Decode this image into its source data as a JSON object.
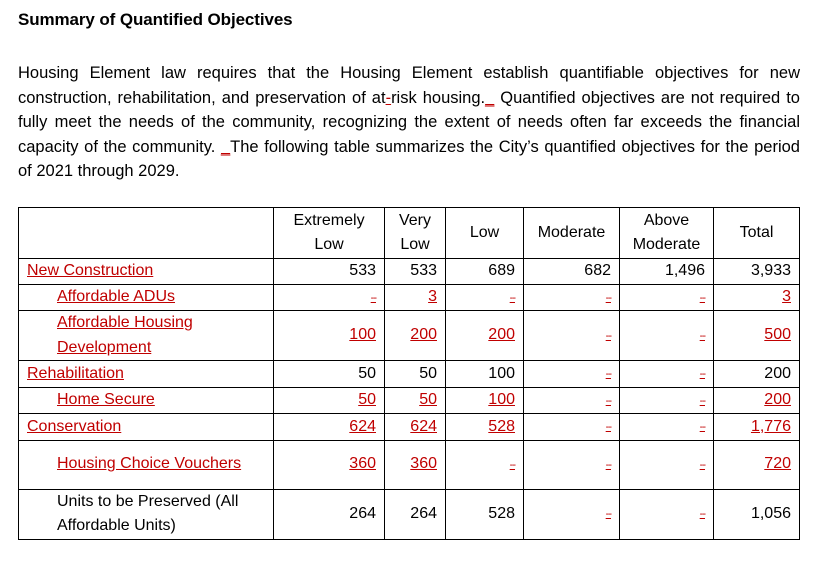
{
  "heading": "Summary of Quantified Objectives",
  "intro": {
    "part1": "Housing Element law requires that the Housing Element establish quantifiable objectives for new construction, rehabilitation, and preservation of at",
    "ins1": "-",
    "part2": "risk housing.",
    "ins2": "_",
    "part3": " Quantified objectives are not required to fully meet the needs of the community, recognizing the extent of needs often far exceeds the financial capacity of the community. ",
    "ins3": "_",
    "part4": "The following table summarizes the City’s quantified objectives for the period of 2021 through 2029."
  },
  "table": {
    "headers": {
      "label": "",
      "extremely_low": "Extremely Low",
      "very_low": "Very Low",
      "low": "Low",
      "moderate": "Moderate",
      "above_moderate": "Above Moderate",
      "total": "Total"
    },
    "rows": [
      {
        "label": "New Construction",
        "style": "cat",
        "values": [
          "533",
          "533",
          "689",
          "682",
          "1,496",
          "3,933"
        ],
        "styles": [
          "",
          "",
          "",
          "",
          "",
          ""
        ]
      },
      {
        "label": "Affordable ADUs",
        "style": "sub",
        "values": [
          "--",
          "3",
          "--",
          "--",
          "--",
          "3"
        ],
        "styles": [
          "dash",
          "red",
          "dash",
          "dash",
          "dash",
          "red"
        ]
      },
      {
        "label": "Affordable Housing Development",
        "style": "sub",
        "values": [
          "100",
          "200",
          "200",
          "--",
          "--",
          "500"
        ],
        "styles": [
          "red",
          "red",
          "red",
          "dash",
          "dash",
          "red"
        ]
      },
      {
        "label": "Rehabilitation",
        "style": "cat",
        "values": [
          "50",
          "50",
          "100",
          "--",
          "--",
          "200"
        ],
        "styles": [
          "",
          "",
          "",
          "dash",
          "dash",
          ""
        ]
      },
      {
        "label": "Home Secure",
        "style": "sub",
        "values": [
          "50",
          "50",
          "100",
          "--",
          "--",
          "200"
        ],
        "styles": [
          "red",
          "red",
          "red",
          "dash",
          "dash",
          "red"
        ]
      },
      {
        "label": "Conservation",
        "style": "cat",
        "values": [
          "624",
          "624",
          "528",
          "--",
          "--",
          "1,776"
        ],
        "styles": [
          "red",
          "red",
          "red",
          "dash",
          "dash",
          "red"
        ]
      },
      {
        "label": "Housing Choice Vouchers",
        "style": "sub",
        "values": [
          "360",
          "360",
          "--",
          "--",
          "--",
          "720"
        ],
        "styles": [
          "red",
          "red",
          "dash",
          "dash",
          "dash",
          "red"
        ]
      },
      {
        "label": "Units to be Preserved (All Affordable Units)",
        "style": "plain",
        "values": [
          "264",
          "264",
          "528",
          "--",
          "--",
          "1,056"
        ],
        "styles": [
          "",
          "",
          "",
          "dash",
          "dash",
          ""
        ]
      }
    ]
  },
  "colors": {
    "insertion_red": "#c00000",
    "text": "#000000"
  }
}
